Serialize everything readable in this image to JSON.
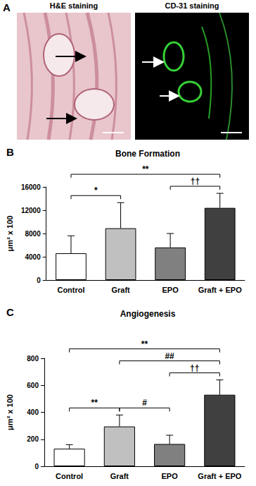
{
  "panel_a": {
    "panel": "A",
    "images": [
      "H&E staining",
      "CD-31 staining"
    ]
  },
  "chart_data": [
    {
      "type": "bar",
      "panel": "B",
      "title": "Bone Formation",
      "y_label": "μm² x 100",
      "categories": [
        "Control",
        "Graft",
        "EPO",
        "Graft + EPO"
      ],
      "values": [
        4600,
        8900,
        5600,
        12400
      ],
      "errors": [
        3000,
        4400,
        2400,
        2500
      ],
      "colors": [
        "#ffffff",
        "#c0c0c0",
        "#808080",
        "#404040"
      ],
      "ylim": [
        0,
        16000
      ],
      "yticks": [
        0,
        4000,
        8000,
        12000,
        16000
      ],
      "grid": false,
      "significance": [
        {
          "from": "Control",
          "to": "Graft",
          "label": "*"
        },
        {
          "from": "EPO",
          "to": "Graft + EPO",
          "label": "††"
        },
        {
          "from": "Control",
          "to": "Graft + EPO",
          "label": "**"
        }
      ]
    },
    {
      "type": "bar",
      "panel": "C",
      "title": "Angiogenesis",
      "y_label": "μm² x 100",
      "categories": [
        "Control",
        "Graft",
        "EPO",
        "Graft + EPO"
      ],
      "values": [
        130,
        295,
        165,
        530
      ],
      "errors": [
        30,
        85,
        65,
        110
      ],
      "colors": [
        "#ffffff",
        "#c0c0c0",
        "#808080",
        "#404040"
      ],
      "ylim": [
        0,
        800
      ],
      "yticks": [
        0,
        200,
        400,
        600,
        800
      ],
      "grid": false,
      "significance": [
        {
          "from": "Control",
          "to": "Graft",
          "label": "**"
        },
        {
          "from": "Graft",
          "to": "EPO",
          "label": "#"
        },
        {
          "from": "EPO",
          "to": "Graft + EPO",
          "label": "††"
        },
        {
          "from": "Graft",
          "to": "Graft + EPO",
          "label": "##"
        },
        {
          "from": "Control",
          "to": "Graft + EPO",
          "label": "**"
        }
      ]
    }
  ]
}
